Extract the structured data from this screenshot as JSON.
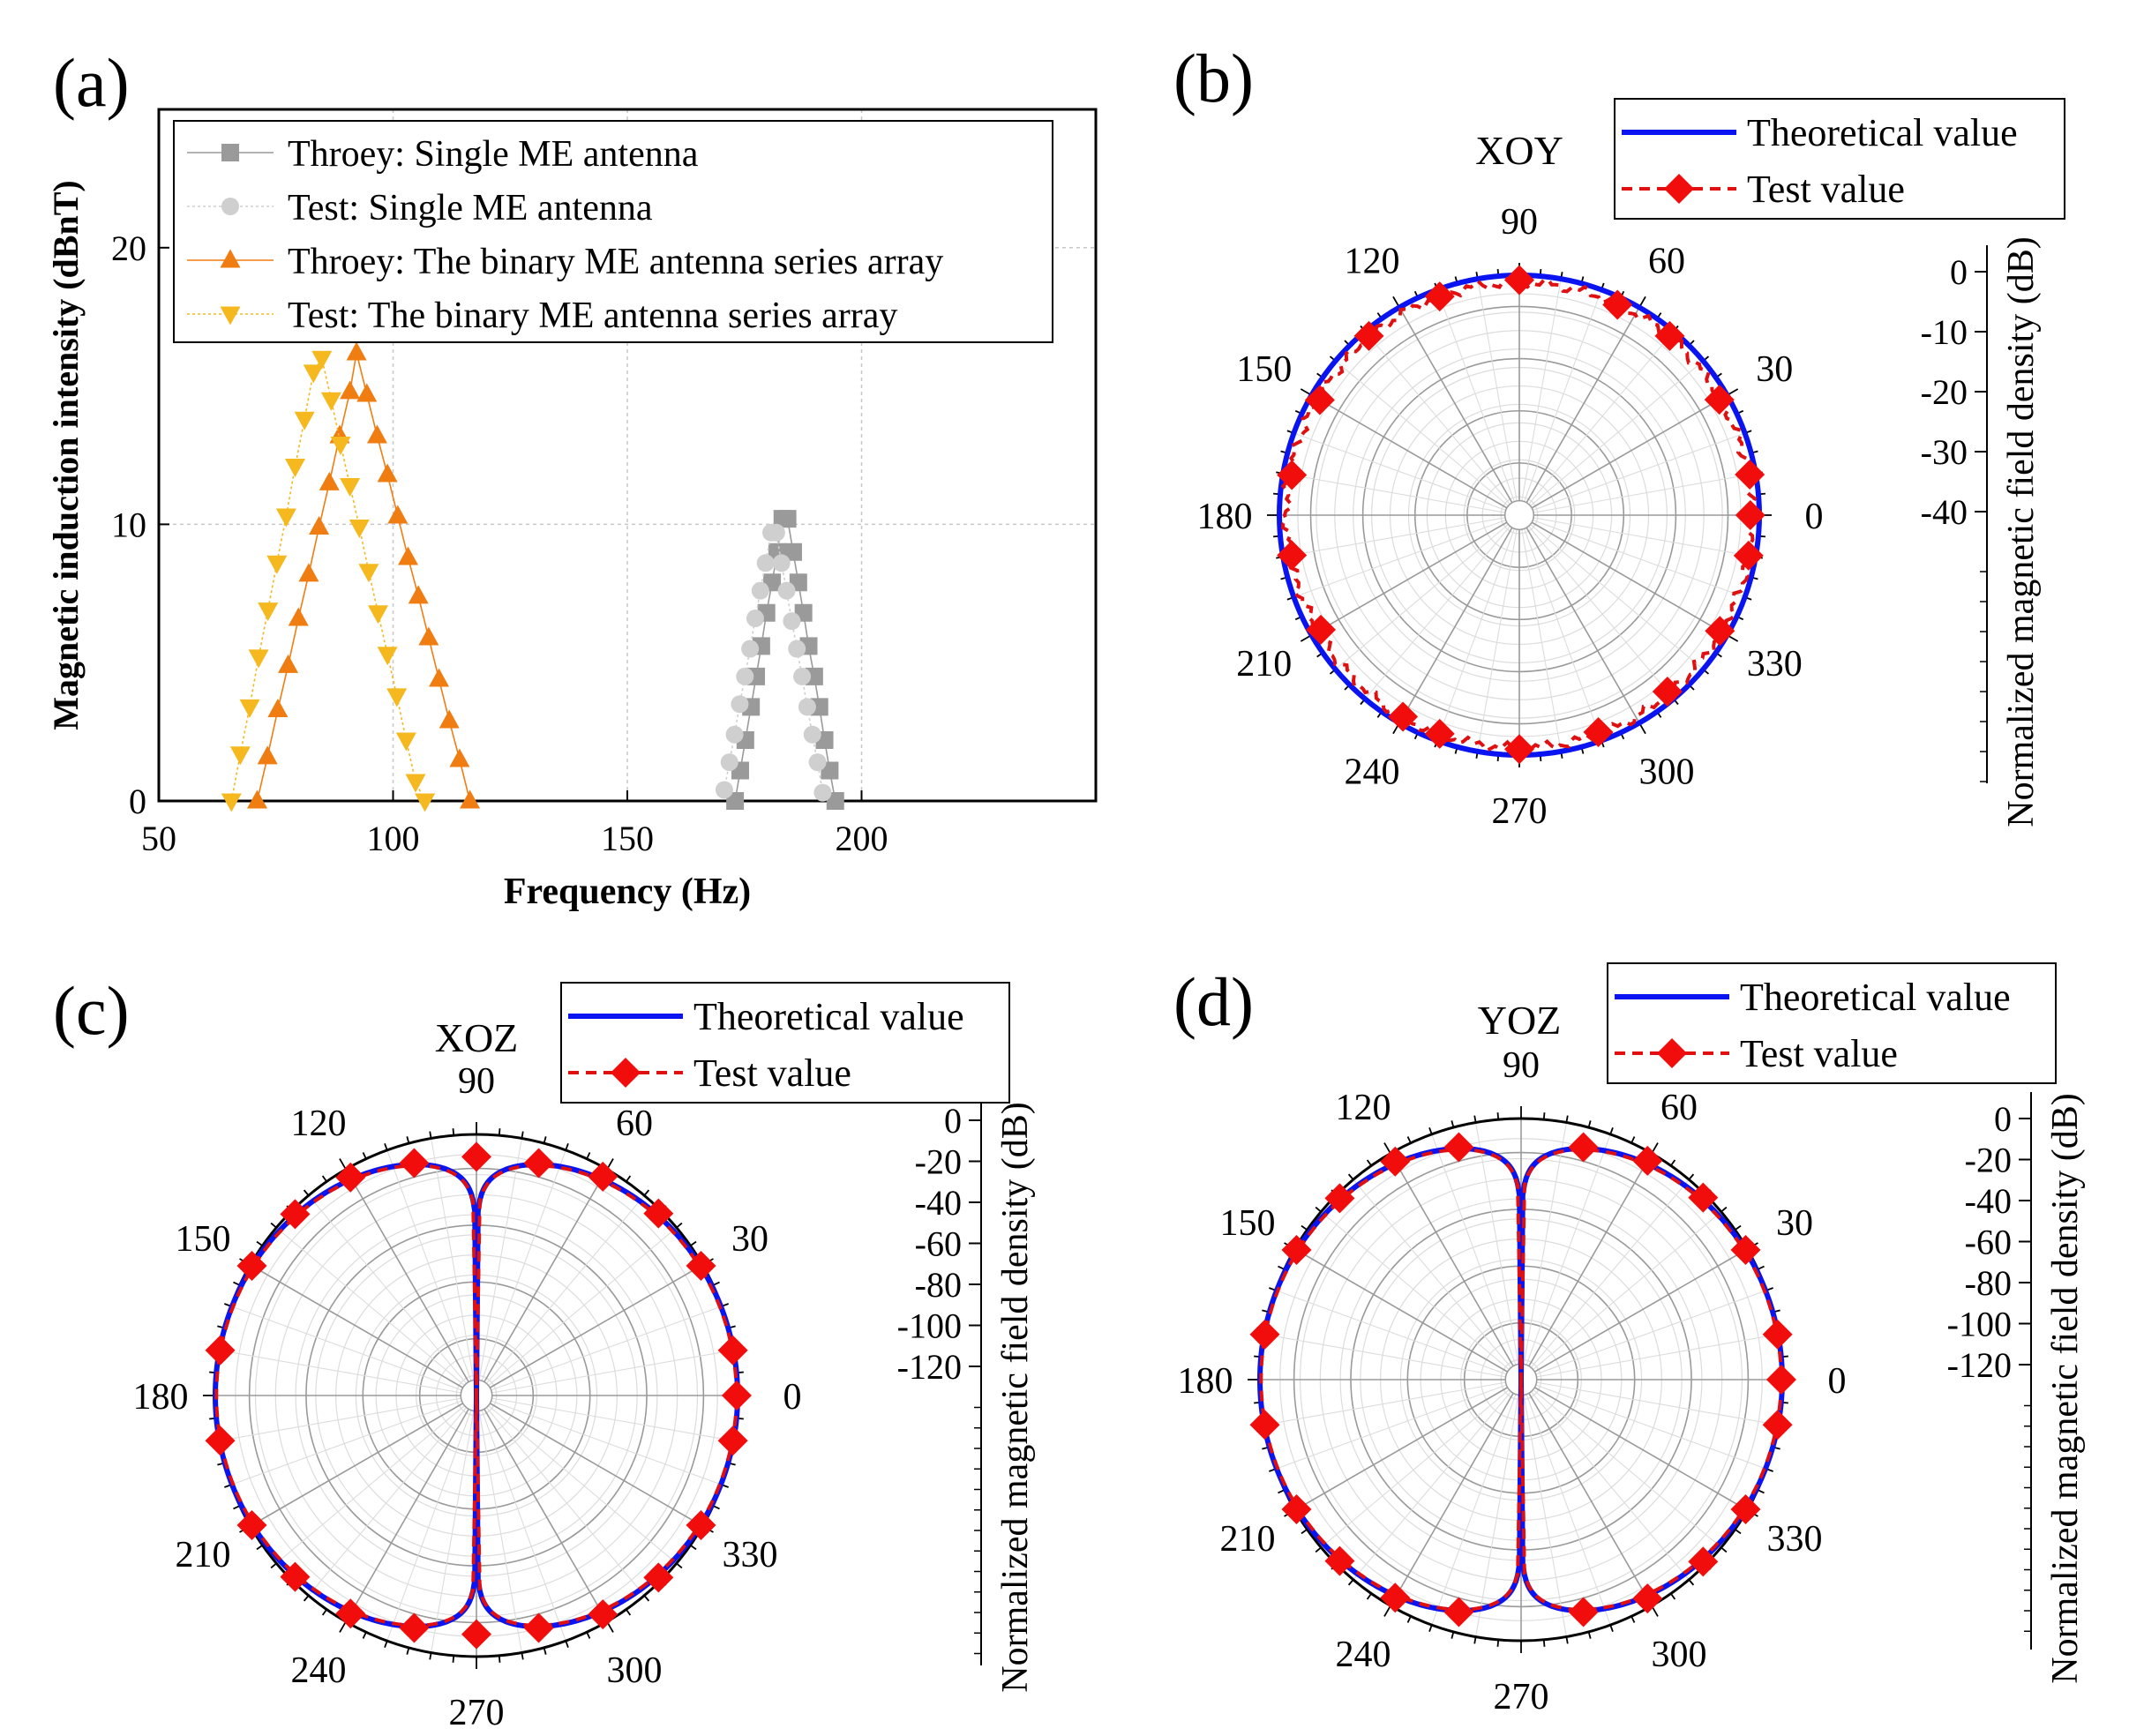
{
  "chart_data": [
    {
      "panel": "(a)",
      "type": "line",
      "xlabel": "Frequency (Hz)",
      "ylabel": "Magnetic induction intensity (dBnT)",
      "xlim": [
        50,
        250
      ],
      "ylim": [
        0,
        25
      ],
      "xticks": [
        50,
        100,
        150,
        200
      ],
      "yticks": [
        0,
        10,
        20
      ],
      "grid": true,
      "legend_position": "top-right",
      "series": [
        {
          "name": "Throey: Single ME antenna",
          "color": "#9a9a9a",
          "marker": "square",
          "x": [
            173.0,
            174.1,
            175.2,
            176.4,
            177.5,
            178.6,
            179.7,
            180.9,
            182.0,
            183.1,
            184.2,
            185.4,
            186.5,
            187.6,
            188.7,
            189.9,
            191.0,
            192.1,
            193.2,
            194.4
          ],
          "y": [
            0.0,
            1.1,
            2.2,
            3.4,
            4.5,
            5.6,
            6.8,
            7.9,
            9.0,
            10.2,
            10.2,
            9.0,
            7.9,
            6.8,
            5.6,
            4.5,
            3.4,
            2.2,
            1.1,
            0.0
          ]
        },
        {
          "name": "Test: Single ME antenna",
          "color": "#cfcfcf",
          "marker": "circle",
          "x": [
            170.7,
            171.8,
            172.9,
            174.0,
            175.1,
            176.2,
            177.3,
            178.4,
            179.5,
            180.7,
            181.8,
            182.9,
            184.0,
            185.1,
            186.2,
            187.3,
            188.4,
            189.5,
            190.6,
            191.7
          ],
          "y": [
            0.4,
            1.4,
            2.4,
            3.5,
            4.5,
            5.5,
            6.6,
            7.6,
            8.6,
            9.7,
            9.7,
            8.6,
            7.6,
            6.5,
            5.5,
            4.5,
            3.4,
            2.4,
            1.4,
            0.3
          ]
        },
        {
          "name": "Throey: The binary ME antenna series array",
          "color": "#f07d11",
          "marker": "triangle-up",
          "x": [
            71.0,
            73.2,
            75.4,
            77.6,
            79.8,
            82.0,
            84.2,
            86.4,
            88.6,
            90.8,
            92.2,
            94.4,
            96.6,
            98.8,
            101.0,
            103.2,
            105.4,
            107.6,
            109.8,
            112.0,
            114.2,
            116.4
          ],
          "y": [
            0.0,
            1.6,
            3.3,
            4.9,
            6.6,
            8.2,
            9.9,
            11.5,
            13.2,
            14.8,
            16.2,
            14.7,
            13.2,
            11.8,
            10.3,
            8.8,
            7.4,
            5.9,
            4.4,
            2.9,
            1.5,
            0.0
          ]
        },
        {
          "name": "Test: The binary ME antenna series array",
          "color": "#f5b81e",
          "marker": "triangle-down",
          "x": [
            65.5,
            67.4,
            69.4,
            71.3,
            73.3,
            75.2,
            77.2,
            79.1,
            81.1,
            83.0,
            84.8,
            86.8,
            88.8,
            90.8,
            92.8,
            94.8,
            96.8,
            98.8,
            100.8,
            102.8,
            104.8,
            106.8
          ],
          "y": [
            0.0,
            1.7,
            3.4,
            5.2,
            6.9,
            8.6,
            10.3,
            12.1,
            13.8,
            15.5,
            16.0,
            14.5,
            12.9,
            11.4,
            9.9,
            8.3,
            6.8,
            5.3,
            3.8,
            2.2,
            0.7,
            0.0
          ]
        }
      ]
    },
    {
      "panel": "(b)",
      "type": "polar",
      "plane": "XOY",
      "angle_ticks": [
        "0",
        "30",
        "60",
        "90",
        "120",
        "150",
        "180",
        "210",
        "240",
        "270",
        "300",
        "330"
      ],
      "radial_axis_label": "Normalized magnetic field density (dB)",
      "radial_ticks": [
        "0",
        "-10",
        "-20",
        "-30",
        "-40"
      ],
      "rlim": [
        -40,
        0
      ],
      "legend": [
        "Theoretical value",
        "Test value"
      ],
      "theory_db": [
        [
          0,
          0
        ],
        [
          30,
          0
        ],
        [
          60,
          0
        ],
        [
          90,
          0
        ],
        [
          120,
          0
        ],
        [
          150,
          0
        ],
        [
          180,
          0
        ],
        [
          210,
          0
        ],
        [
          240,
          0
        ],
        [
          270,
          0
        ],
        [
          300,
          0
        ],
        [
          330,
          0
        ],
        [
          360,
          0
        ]
      ],
      "test_points_deg": [
        0,
        10,
        30,
        50,
        65,
        90,
        110,
        130,
        150,
        170,
        190,
        210,
        240,
        250,
        270,
        290,
        310,
        330,
        350
      ],
      "test_db": [
        -1.5,
        -1.0,
        -1.5,
        -1.0,
        -1.3,
        -0.8,
        -1.2,
        -1.0,
        -1.6,
        -1.5,
        -1.5,
        -1.8,
        -1.2,
        -1.2,
        -1.0,
        -1.5,
        -1.6,
        -1.4,
        -1.2
      ]
    },
    {
      "panel": "(c)",
      "type": "polar",
      "plane": "XOZ",
      "angle_ticks": [
        "0",
        "30",
        "60",
        "90",
        "120",
        "150",
        "180",
        "210",
        "240",
        "270",
        "300",
        "330"
      ],
      "radial_axis_label": "Normalized magnetic field density (dB)",
      "radial_ticks": [
        "0",
        "-20",
        "-40",
        "-60",
        "-80",
        "-100",
        "-120"
      ],
      "rlim": [
        -140,
        0
      ],
      "legend": [
        "Theoretical value",
        "Test value"
      ],
      "theory_model": "20*log10(max(|cos(theta)|,1e-7)), dip to -140 dB at 90 and 270",
      "test_points_deg": [
        0,
        10,
        30,
        45,
        60,
        75,
        90,
        105,
        120,
        135,
        150,
        170,
        190,
        210,
        225,
        240,
        255,
        270,
        285,
        300,
        315,
        330,
        350
      ],
      "test_db": [
        -0.5,
        -0.4,
        -1.0,
        -2.0,
        -4.5,
        -11.0,
        -12.0,
        -11.0,
        -5.0,
        -2.5,
        -1.0,
        -0.5,
        -0.5,
        -1.0,
        -2.5,
        -5.0,
        -11.0,
        -12.0,
        -11.0,
        -4.5,
        -2.0,
        -1.0,
        -0.4
      ]
    },
    {
      "panel": "(d)",
      "type": "polar",
      "plane": "YOZ",
      "angle_ticks": [
        "0",
        "30",
        "60",
        "90",
        "120",
        "150",
        "180",
        "210",
        "240",
        "270",
        "300",
        "330"
      ],
      "radial_axis_label": "Normalized magnetic field density (dB)",
      "radial_ticks": [
        "0",
        "-20",
        "-40",
        "-60",
        "-80",
        "-100",
        "-120"
      ],
      "rlim": [
        -140,
        0
      ],
      "legend": [
        "Theoretical value",
        "Test value"
      ],
      "theory_model": "20*log10(max(|cos(theta)|,1e-7)), dip to -140 dB at 90 and 270",
      "test_points_deg": [
        0,
        10,
        30,
        45,
        60,
        75,
        105,
        120,
        135,
        150,
        170,
        190,
        210,
        225,
        240,
        255,
        285,
        300,
        315,
        330,
        350
      ],
      "test_db": [
        -0.5,
        -0.4,
        -1.0,
        -2.0,
        -4.5,
        -11.0,
        -11.0,
        -5.0,
        -2.5,
        -1.0,
        -0.5,
        -0.5,
        -1.0,
        -2.5,
        -5.0,
        -11.0,
        -11.0,
        -4.5,
        -2.0,
        -1.0,
        -0.4
      ]
    }
  ]
}
